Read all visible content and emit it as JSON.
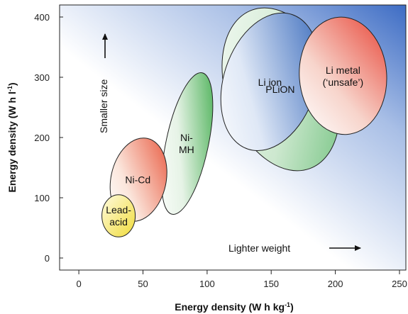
{
  "chart_data": {
    "type": "scatter",
    "title": "",
    "xlabel": "Energy density (W h kg",
    "xlabel_sup": "-1",
    "xlabel_end": ")",
    "ylabel": "Energy density (W h l",
    "ylabel_sup": "-1",
    "ylabel_end": ")",
    "xlim": [
      -15,
      255
    ],
    "ylim": [
      -20,
      420
    ],
    "xticks": [
      0,
      50,
      100,
      150,
      200,
      250
    ],
    "yticks": [
      0,
      100,
      200,
      300,
      400
    ],
    "grid": false,
    "background": "gradient: white at low left to blue at top right",
    "regions": [
      {
        "name": "Lead-acid",
        "label_lines": [
          "Lead-",
          "acid"
        ],
        "x_range": [
          18,
          44
        ],
        "y_range": [
          35,
          105
        ],
        "center": [
          31,
          70
        ],
        "color": "#f0dc3a"
      },
      {
        "name": "Ni-Cd",
        "label_lines": [
          "Ni-Cd"
        ],
        "x_range": [
          25,
          68
        ],
        "y_range": [
          60,
          200
        ],
        "center": [
          46,
          130
        ],
        "color": "#e8553a"
      },
      {
        "name": "Ni-MH",
        "label_lines": [
          "Ni-",
          "MH"
        ],
        "x_range": [
          68,
          101
        ],
        "y_range": [
          70,
          310
        ],
        "center": [
          84,
          190
        ],
        "color": "#37a844"
      },
      {
        "name": "PLiON",
        "label_lines": [
          "PLiON"
        ],
        "x_range": [
          115,
          200
        ],
        "y_range": [
          140,
          420
        ],
        "center": [
          157,
          280
        ],
        "color": "#6cc07a"
      },
      {
        "name": "Li ion",
        "label_lines": [
          "Li ion"
        ],
        "x_range": [
          113,
          185
        ],
        "y_range": [
          175,
          410
        ],
        "center": [
          149,
          292
        ],
        "color": "#2e62b8"
      },
      {
        "name": "Li metal ('unsafe')",
        "label_lines": [
          "Li metal",
          "(‘unsafe’)"
        ],
        "x_range": [
          172,
          240
        ],
        "y_range": [
          205,
          400
        ],
        "center": [
          206,
          302
        ],
        "color": "#e8483a"
      }
    ],
    "annotations": [
      {
        "text": "Smaller size",
        "direction": "up"
      },
      {
        "text": "Lighter weight",
        "direction": "right"
      }
    ]
  }
}
